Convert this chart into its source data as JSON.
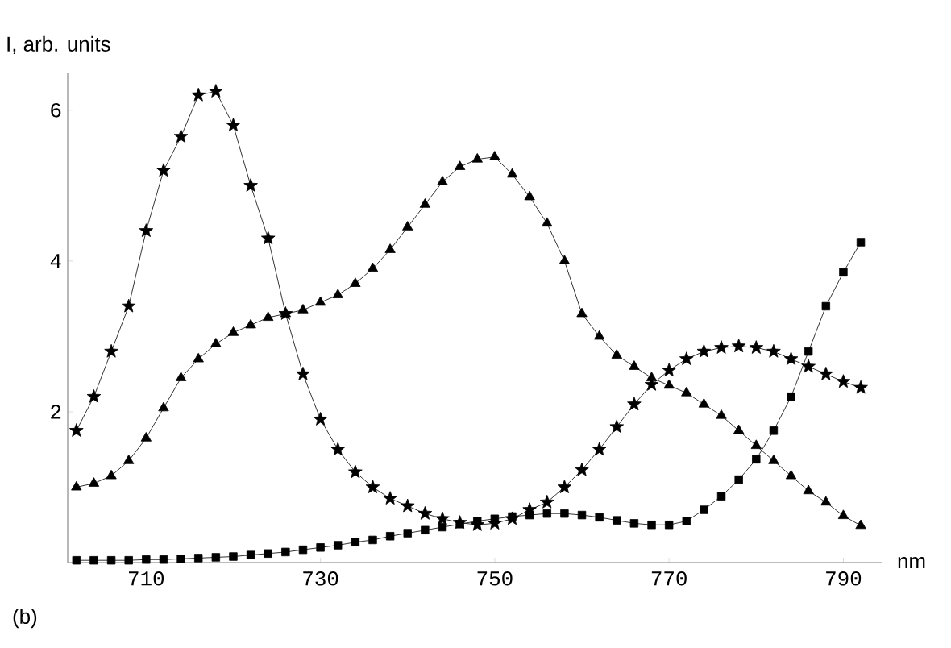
{
  "chart_data": {
    "type": "line",
    "xlabel": "nm",
    "ylabel": "I, arb. units",
    "annotations": [
      "(b)"
    ],
    "xlim": [
      701,
      794.4
    ],
    "ylim": [
      0,
      6.5
    ],
    "xticks": [
      710,
      730,
      750,
      770,
      790
    ],
    "yticks": [
      2,
      4,
      6
    ],
    "grid": false,
    "line_style": "solid",
    "x": [
      702,
      704,
      706,
      708,
      710,
      712,
      714,
      716,
      718,
      720,
      722,
      724,
      726,
      728,
      730,
      732,
      734,
      736,
      738,
      740,
      742,
      744,
      746,
      748,
      750,
      752,
      754,
      756,
      758,
      760,
      762,
      764,
      766,
      768,
      770,
      772,
      774,
      776,
      778,
      780,
      782,
      784,
      786,
      788,
      790,
      792
    ],
    "series": [
      {
        "color": "#000000",
        "marker": "star",
        "values": [
          1.75,
          2.2,
          2.8,
          3.4,
          4.4,
          5.2,
          5.65,
          6.2,
          6.25,
          5.8,
          5.0,
          4.3,
          3.3,
          2.5,
          1.9,
          1.5,
          1.2,
          1.0,
          0.85,
          0.75,
          0.65,
          0.58,
          0.53,
          0.5,
          0.52,
          0.58,
          0.7,
          0.8,
          1.0,
          1.23,
          1.5,
          1.8,
          2.1,
          2.36,
          2.55,
          2.7,
          2.8,
          2.85,
          2.87,
          2.85,
          2.8,
          2.7,
          2.6,
          2.5,
          2.4,
          2.32
        ]
      },
      {
        "color": "#000000",
        "marker": "triangle",
        "values": [
          1.0,
          1.05,
          1.15,
          1.35,
          1.65,
          2.05,
          2.45,
          2.7,
          2.9,
          3.05,
          3.15,
          3.25,
          3.3,
          3.35,
          3.45,
          3.55,
          3.7,
          3.9,
          4.15,
          4.45,
          4.75,
          5.05,
          5.25,
          5.35,
          5.38,
          5.15,
          4.85,
          4.5,
          4.0,
          3.3,
          3.0,
          2.75,
          2.6,
          2.45,
          2.35,
          2.25,
          2.1,
          1.95,
          1.75,
          1.55,
          1.35,
          1.15,
          0.95,
          0.8,
          0.62,
          0.49
        ]
      },
      {
        "color": "#000000",
        "marker": "square",
        "values": [
          0.03,
          0.03,
          0.03,
          0.03,
          0.04,
          0.04,
          0.05,
          0.06,
          0.07,
          0.08,
          0.1,
          0.12,
          0.14,
          0.17,
          0.2,
          0.23,
          0.27,
          0.3,
          0.35,
          0.39,
          0.43,
          0.47,
          0.51,
          0.55,
          0.58,
          0.61,
          0.63,
          0.65,
          0.65,
          0.63,
          0.6,
          0.56,
          0.52,
          0.5,
          0.5,
          0.55,
          0.7,
          0.88,
          1.1,
          1.37,
          1.75,
          2.2,
          2.8,
          3.4,
          3.85,
          4.25
        ]
      }
    ]
  }
}
